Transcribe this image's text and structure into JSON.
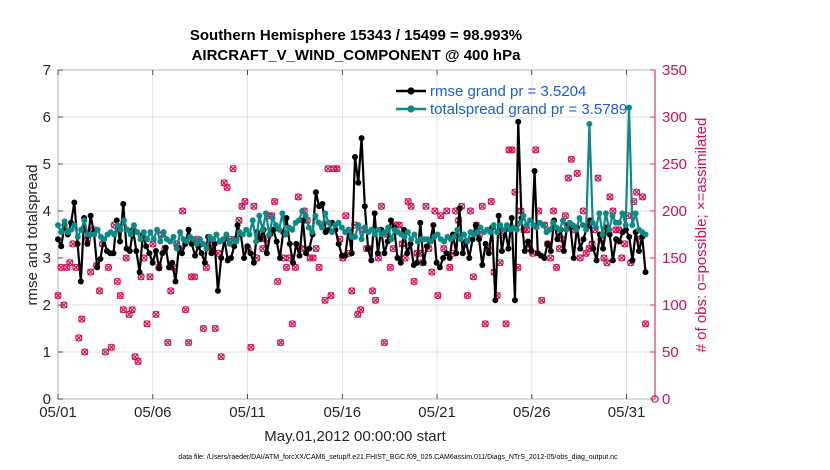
{
  "chart_data": {
    "type": "line",
    "title": "Southern Hemisphere 15343 / 15499 = 98.993%",
    "subtitle": "AIRCRAFT_V_WIND_COMPONENT @ 400 hPa",
    "xlabel": "May.01,2012 00:00:00 start",
    "ylabel": "rmse and totalspread",
    "ylabel_right": "# of obs: o=possible; ×=assimilated",
    "footnote": "data file: /Users/raeder/DAI/ATM_forcXX/CAM6_setup/f.e21.FHIST_BGC.f09_025.CAM6assim.011/Diags_NTrS_2012-05/obs_diag_output.nc",
    "xlim": [
      0,
      31.5
    ],
    "ylim": [
      0,
      7
    ],
    "ylim_right": [
      0,
      350
    ],
    "x_ticks": [
      "05/01",
      "05/06",
      "05/11",
      "05/16",
      "05/21",
      "05/26",
      "05/31"
    ],
    "x_tick_values": [
      0,
      5,
      10,
      15,
      20,
      25,
      30
    ],
    "y_ticks": [
      "0",
      "1",
      "2",
      "3",
      "4",
      "5",
      "6",
      "7"
    ],
    "y_ticks_right": [
      "0",
      "50",
      "100",
      "150",
      "200",
      "250",
      "300",
      "350"
    ],
    "legend_position": "top-right",
    "colors": {
      "rmse": "#000000",
      "spread": "#0b8a86",
      "obs": "#d0105a",
      "legend_text": "#1a5fd8"
    },
    "series": [
      {
        "name": "rmse grand pr = 3.5204",
        "values": [
          3.4,
          3.25,
          3.7,
          3.5,
          3.75,
          4.18,
          3.3,
          2.5,
          3.85,
          3.3,
          3.9,
          3.55,
          2.8,
          2.98,
          3.4,
          3.15,
          3.1,
          3.1,
          3.8,
          3.35,
          4.15,
          3.2,
          3.15,
          3.6,
          3.15,
          2.7,
          3.5,
          3.25,
          3.1,
          2.9,
          3.15,
          2.78,
          3.1,
          3.22,
          2.8,
          2.9,
          2.5,
          3.2,
          3.1,
          3.3,
          3.6,
          3.3,
          3.05,
          3.25,
          3.1,
          2.9,
          3.45,
          3.1,
          3.3,
          2.3,
          3.0,
          3.4,
          2.95,
          3.0,
          3.25,
          3.7,
          3.5,
          3.0,
          3.25,
          3.1,
          2.9,
          3.55,
          3.4,
          3.6,
          3.1,
          3.5,
          3.6,
          3.35,
          3.0,
          3.55,
          3.85,
          3.3,
          2.9,
          3.3,
          3.05,
          3.8,
          3.1,
          3.2,
          3.5,
          4.4,
          4.1,
          4.15,
          3.55,
          3.6,
          3.75,
          3.6,
          3.3,
          3.05,
          3.05,
          3.6,
          3.1,
          5.15,
          4.6,
          5.55,
          4.1,
          3.2,
          2.95,
          3.95,
          3.1,
          3.6,
          3.1,
          3.35,
          3.8,
          3.65,
          3.0,
          2.9,
          3.6,
          3.1,
          3.3,
          2.85,
          2.9,
          3.75,
          2.9,
          3.25,
          3.35,
          3.7,
          2.9,
          2.8,
          3.0,
          3.1,
          3.0,
          3.5,
          3.1,
          4.05,
          3.1,
          3.35,
          3.0,
          3.4,
          3.7,
          3.4,
          2.85,
          3.3,
          3.1,
          3.65,
          2.1,
          3.9,
          3.15,
          3.6,
          3.2,
          3.85,
          2.1,
          5.9,
          3.85,
          3.15,
          3.35,
          3.15,
          4.85,
          3.1,
          3.05,
          3.0,
          3.3,
          3.15,
          3.8,
          3.4,
          3.6,
          3.15,
          3.7,
          3.65,
          3.0,
          3.65,
          3.2,
          3.4,
          3.65,
          3.8,
          3.2,
          2.95,
          3.5,
          3.2,
          3.65,
          3.5,
          2.95,
          3.4,
          3.35,
          3.55,
          3.6,
          3.45,
          2.95,
          3.55,
          3.15,
          3.45,
          2.7
        ]
      },
      {
        "name": "totalspread grand pr = 3.5789",
        "values": [
          3.7,
          3.55,
          3.78,
          3.55,
          3.6,
          3.7,
          3.45,
          3.6,
          3.8,
          3.5,
          3.5,
          3.5,
          3.6,
          3.45,
          3.4,
          3.5,
          3.55,
          3.5,
          3.7,
          3.6,
          3.8,
          3.6,
          3.5,
          3.7,
          3.55,
          3.4,
          3.55,
          3.4,
          3.55,
          3.4,
          3.6,
          3.35,
          3.55,
          3.4,
          3.35,
          3.45,
          3.2,
          3.55,
          3.4,
          3.35,
          3.45,
          3.4,
          3.3,
          3.4,
          3.3,
          3.2,
          3.45,
          3.4,
          3.5,
          3.35,
          3.4,
          3.5,
          3.3,
          3.4,
          3.35,
          3.55,
          3.5,
          3.6,
          3.5,
          3.8,
          3.35,
          3.9,
          3.6,
          3.95,
          3.5,
          3.85,
          3.7,
          3.6,
          3.95,
          3.5,
          3.65,
          3.6,
          3.75,
          3.8,
          4.0,
          3.9,
          3.65,
          3.55,
          3.9,
          3.75,
          3.65,
          3.95,
          3.75,
          3.55,
          3.7,
          3.75,
          3.65,
          3.55,
          3.6,
          3.45,
          3.45,
          3.7,
          3.4,
          3.65,
          3.55,
          3.6,
          3.5,
          3.6,
          3.5,
          3.55,
          3.65,
          3.4,
          3.6,
          3.55,
          3.5,
          3.45,
          3.55,
          3.4,
          3.5,
          3.35,
          3.4,
          3.4,
          3.4,
          3.35,
          3.45,
          3.5,
          3.4,
          3.35,
          3.45,
          3.4,
          3.45,
          3.6,
          3.4,
          3.5,
          3.35,
          3.55,
          3.5,
          3.55,
          3.65,
          3.55,
          3.6,
          3.55,
          3.7,
          3.55,
          3.7,
          3.6,
          3.7,
          3.6,
          3.65,
          3.6,
          3.75,
          3.9,
          3.7,
          3.8,
          3.7,
          3.65,
          3.75,
          3.7,
          3.55,
          3.6,
          3.75,
          3.65,
          3.6,
          3.8,
          3.6,
          3.75,
          3.7,
          3.6,
          3.85,
          3.7,
          3.6,
          5.85,
          3.75,
          3.65,
          3.95,
          3.5,
          3.95,
          3.6,
          3.9,
          3.75,
          3.75,
          3.95,
          3.7,
          6.2,
          3.7,
          3.95,
          3.6,
          3.55,
          3.5
        ]
      },
      {
        "name": "obs_possible",
        "values": [
          110,
          140,
          100,
          140,
          145,
          165,
          140,
          65,
          85,
          50,
          170,
          135,
          180,
          142,
          115,
          165,
          50,
          140,
          55,
          185,
          125,
          110,
          95,
          150,
          90,
          95,
          45,
          40,
          130,
          150,
          80,
          130,
          165,
          90,
          140,
          175,
          160,
          60,
          115,
          140,
          165,
          160,
          200,
          95,
          60,
          130,
          130,
          170,
          165,
          75,
          140,
          165,
          160,
          75,
          155,
          45,
          230,
          225,
          170,
          245,
          170,
          190,
          205,
          210,
          160,
          55,
          205,
          150,
          175,
          160,
          170,
          195,
          195,
          210,
          125,
          60,
          150,
          140,
          150,
          80,
          140,
          215,
          160,
          200,
          190,
          150,
          150,
          160,
          140,
          185,
          105,
          245,
          110,
          245,
          245,
          170,
          150,
          195,
          155,
          115,
          185,
          90,
          95,
          180,
          160,
          160,
          115,
          105,
          150,
          205,
          60,
          175,
          140,
          160,
          185,
          185,
          165,
          150,
          210,
          205,
          125,
          155,
          155,
          145,
          205,
          160,
          135,
          200,
          110,
          195,
          160,
          200,
          140,
          155,
          200,
          190,
          205,
          165,
          110,
          200,
          130,
          185,
          175,
          205,
          80,
          160,
          210,
          135,
          110,
          145,
          175,
          80,
          265,
          265,
          220,
          140,
          200,
          180,
          180,
          160,
          155,
          265,
          200,
          105,
          185,
          165,
          150,
          200,
          140,
          160,
          170,
          195,
          235,
          255,
          180,
          240,
          150,
          200,
          155,
          160,
          165,
          180,
          235,
          170,
          150,
          145,
          215,
          200,
          180,
          180,
          150,
          165,
          195,
          145,
          210,
          220,
          170,
          215,
          80
        ]
      }
    ]
  }
}
